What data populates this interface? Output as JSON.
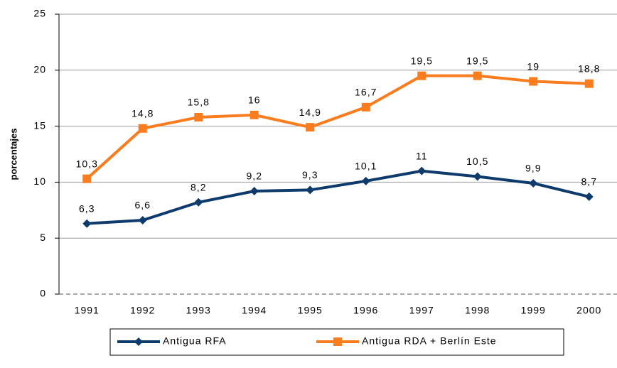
{
  "chart_data": {
    "type": "line",
    "y_label": "porcentajes",
    "categories": [
      "1991",
      "1992",
      "1993",
      "1994",
      "1995",
      "1996",
      "1997",
      "1998",
      "1999",
      "2000"
    ],
    "series": [
      {
        "name": "Antigua RFA",
        "color": "#0e3a6c",
        "marker": "diamond",
        "values": [
          6.3,
          6.6,
          8.2,
          9.2,
          9.3,
          10.1,
          11,
          10.5,
          9.9,
          8.7
        ],
        "value_labels": [
          "6,3",
          "6,6",
          "8,2",
          "9,2",
          "9,3",
          "10,1",
          "11",
          "10,5",
          "9,9",
          "8,7"
        ]
      },
      {
        "name": "Antigua RDA + Berlín Este",
        "color": "#f97c1e",
        "marker": "square",
        "values": [
          10.3,
          14.8,
          15.8,
          16,
          14.9,
          16.7,
          19.5,
          19.5,
          19,
          18.8
        ],
        "value_labels": [
          "10,3",
          "14,8",
          "15,8",
          "16",
          "14,9",
          "16,7",
          "19,5",
          "19,5",
          "19",
          "18,8"
        ]
      }
    ],
    "ylim": [
      0,
      25
    ],
    "yticks": [
      0,
      5,
      10,
      15,
      20,
      25
    ],
    "grid": true,
    "legend": "bottom"
  }
}
